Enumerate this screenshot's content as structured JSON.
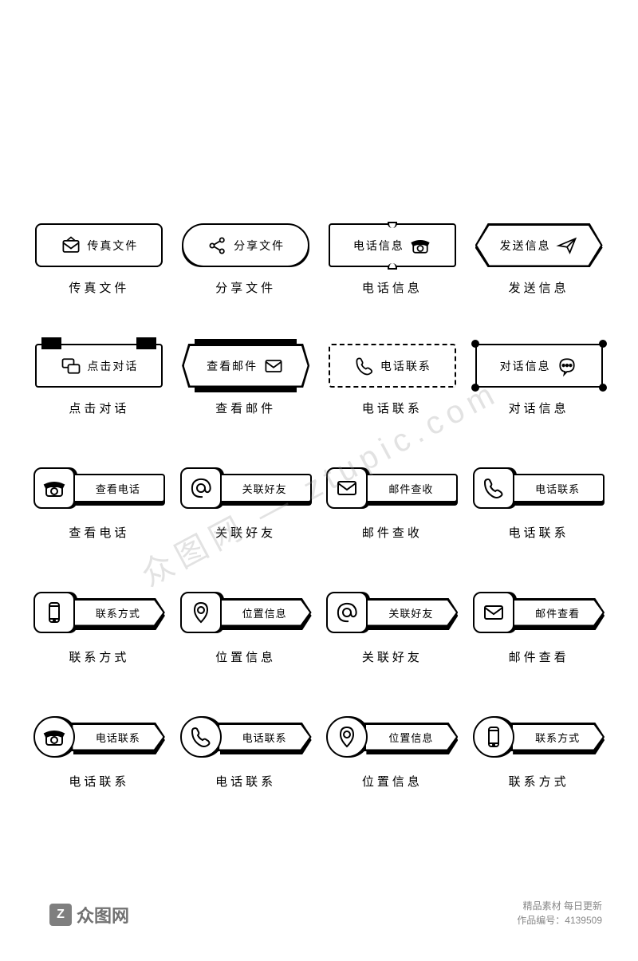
{
  "colors": {
    "stroke": "#000000",
    "fill": "#ffffff",
    "background": "#ffffff",
    "watermark_text": "#888888"
  },
  "typography": {
    "button_fontsize": 14,
    "caption_fontsize": 15,
    "caption_letterspacing": 4,
    "font_family": "Microsoft YaHei"
  },
  "rows": [
    {
      "type": "full-button",
      "items": [
        {
          "label": "传真文件",
          "caption": "传真文件",
          "icon": "envelope",
          "style": "r1-1",
          "icon_pos": "left"
        },
        {
          "label": "分享文件",
          "caption": "分享文件",
          "icon": "share",
          "style": "r1-2",
          "icon_pos": "left"
        },
        {
          "label": "电话信息",
          "caption": "电话信息",
          "icon": "phone-retro",
          "style": "r1-3",
          "icon_pos": "right"
        },
        {
          "label": "发送信息",
          "caption": "发送信息",
          "icon": "paper-plane",
          "style": "r1-4",
          "icon_pos": "right"
        }
      ]
    },
    {
      "type": "full-button",
      "items": [
        {
          "label": "点击对话",
          "caption": "点击对话",
          "icon": "chat",
          "style": "r2-1",
          "icon_pos": "left"
        },
        {
          "label": "查看邮件",
          "caption": "查看邮件",
          "icon": "mail",
          "style": "r2-2",
          "icon_pos": "right"
        },
        {
          "label": "电话联系",
          "caption": "电话联系",
          "icon": "handset",
          "style": "r2-3",
          "icon_pos": "left"
        },
        {
          "label": "对话信息",
          "caption": "对话信息",
          "icon": "speech",
          "style": "r2-4",
          "icon_pos": "right"
        }
      ]
    },
    {
      "type": "compound",
      "variant": "r3",
      "items": [
        {
          "label": "查看电话",
          "caption": "查看电话",
          "icon": "phone-retro"
        },
        {
          "label": "关联好友",
          "caption": "关联好友",
          "icon": "at"
        },
        {
          "label": "邮件查收",
          "caption": "邮件查收",
          "icon": "mail"
        },
        {
          "label": "电话联系",
          "caption": "电话联系",
          "icon": "handset"
        }
      ]
    },
    {
      "type": "compound",
      "variant": "r4",
      "items": [
        {
          "label": "联系方式",
          "caption": "联系方式",
          "icon": "mobile"
        },
        {
          "label": "位置信息",
          "caption": "位置信息",
          "icon": "pin"
        },
        {
          "label": "关联好友",
          "caption": "关联好友",
          "icon": "at"
        },
        {
          "label": "邮件查看",
          "caption": "邮件查看",
          "icon": "mail"
        }
      ]
    },
    {
      "type": "compound",
      "variant": "r5",
      "items": [
        {
          "label": "电话联系",
          "caption": "电话联系",
          "icon": "phone-retro"
        },
        {
          "label": "电话联系",
          "caption": "电话联系",
          "icon": "handset"
        },
        {
          "label": "位置信息",
          "caption": "位置信息",
          "icon": "pin"
        },
        {
          "label": "联系方式",
          "caption": "联系方式",
          "icon": "mobile"
        }
      ]
    }
  ],
  "watermark": {
    "logo_text": "众图网",
    "logo_icon": "Z",
    "tagline": "精品素材    每日更新",
    "id_label": "作品编号：4139509",
    "diagonal": "众图网 — ztupic.com"
  }
}
